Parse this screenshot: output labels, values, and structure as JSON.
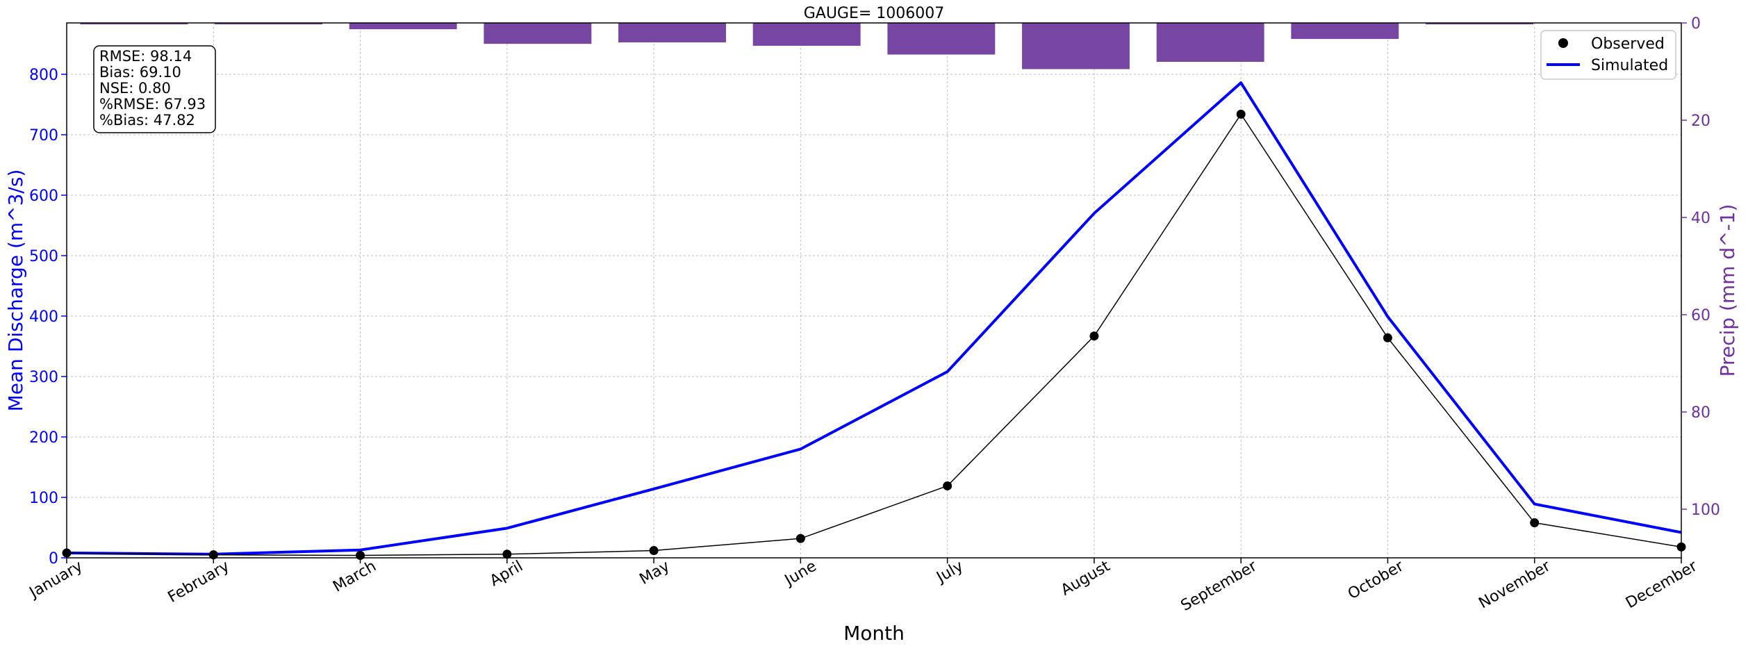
{
  "chart_data": {
    "type": "line",
    "title": "GAUGE= 1006007",
    "xlabel": "Month",
    "ylabel_left": "Mean Discharge (m^3/s)",
    "ylabel_right": "Precip (mm d^-1)",
    "categories": [
      "January",
      "February",
      "March",
      "April",
      "May",
      "June",
      "July",
      "August",
      "September",
      "October",
      "November",
      "December"
    ],
    "ylim_left": [
      0,
      885
    ],
    "ylim_right_inverted": [
      0,
      110
    ],
    "yticks_left": [
      0,
      100,
      200,
      300,
      400,
      500,
      600,
      700,
      800
    ],
    "yticks_right": [
      0,
      20,
      40,
      60,
      80,
      100
    ],
    "grid": true,
    "legend_position": "top-right",
    "series": [
      {
        "name": "Observed",
        "type": "line-with-markers",
        "values": [
          8,
          5,
          4,
          6,
          12,
          32,
          119,
          367,
          734,
          364,
          58,
          18
        ]
      },
      {
        "name": "Simulated",
        "type": "line",
        "values": [
          8,
          6,
          13,
          49,
          114,
          180,
          308,
          570,
          786,
          399,
          89,
          42
        ]
      }
    ],
    "precip": {
      "type": "bar",
      "inverted": true,
      "values": [
        0.3,
        0.3,
        1.3,
        4.3,
        4,
        4.7,
        6.5,
        9.5,
        8,
        3.3,
        0.3,
        null
      ]
    },
    "stats": [
      "RMSE: 98.14",
      "Bias: 69.10",
      "NSE: 0.80",
      "%RMSE: 67.93",
      "%Bias: 47.82"
    ],
    "colors": {
      "observed": "#000000",
      "simulated": "#0000ff",
      "precip": "#7646a2",
      "left_axis": "#0000ff",
      "right_axis": "#7030a0"
    }
  }
}
